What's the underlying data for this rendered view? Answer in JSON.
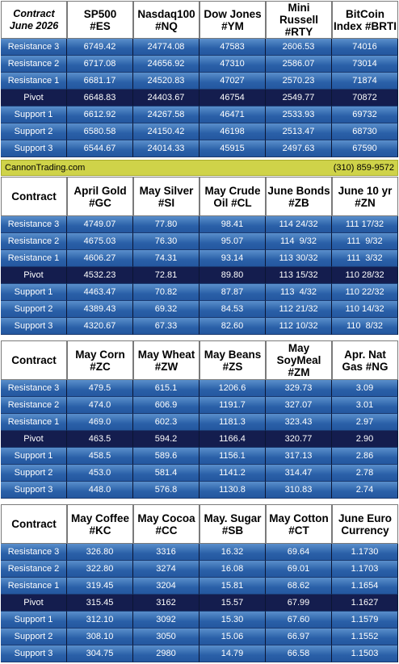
{
  "labels": [
    "Resistance 3",
    "Resistance 2",
    "Resistance 1",
    "Pivot",
    "Support 1",
    "Support 2",
    "Support 3"
  ],
  "banner": {
    "left": "CannonTrading.com",
    "right": "(310) 859-9572"
  },
  "colors": {
    "row": "#2a60a8",
    "pivot": "#141d4e",
    "banner": "#cfd349",
    "header": "#ffffff"
  },
  "tables": [
    {
      "corner": [
        "Contract",
        "June 2026"
      ],
      "headers": [
        [
          "SP500",
          "#ES"
        ],
        [
          "Nasdaq100",
          "#NQ"
        ],
        [
          "Dow Jones",
          "#YM"
        ],
        [
          "Mini Russell",
          "#RTY"
        ],
        [
          "BitCoin",
          "Index #BRTI"
        ]
      ],
      "rows": [
        [
          "6749.42",
          "24774.08",
          "47583",
          "2606.53",
          "74016"
        ],
        [
          "6717.08",
          "24656.92",
          "47310",
          "2586.07",
          "73014"
        ],
        [
          "6681.17",
          "24520.83",
          "47027",
          "2570.23",
          "71874"
        ],
        [
          "6648.83",
          "24403.67",
          "46754",
          "2549.77",
          "70872"
        ],
        [
          "6612.92",
          "24267.58",
          "46471",
          "2533.93",
          "69732"
        ],
        [
          "6580.58",
          "24150.42",
          "46198",
          "2513.47",
          "68730"
        ],
        [
          "6544.67",
          "24014.33",
          "45915",
          "2497.63",
          "67590"
        ]
      ]
    },
    {
      "corner": [
        "Contract"
      ],
      "headers": [
        [
          "April Gold",
          "#GC"
        ],
        [
          "May Silver",
          "#SI"
        ],
        [
          "May Crude",
          "Oil #CL"
        ],
        [
          "June Bonds",
          "#ZB"
        ],
        [
          "June 10 yr",
          "#ZN"
        ]
      ],
      "rows": [
        [
          "4749.07",
          "77.80",
          "98.41",
          "114 24/32",
          "111 17/32"
        ],
        [
          "4675.03",
          "76.30",
          "95.07",
          "114  9/32",
          "111  9/32"
        ],
        [
          "4606.27",
          "74.31",
          "93.14",
          "113 30/32",
          "111  3/32"
        ],
        [
          "4532.23",
          "72.81",
          "89.80",
          "113 15/32",
          "110 28/32"
        ],
        [
          "4463.47",
          "70.82",
          "87.87",
          "113  4/32",
          "110 22/32"
        ],
        [
          "4389.43",
          "69.32",
          "84.53",
          "112 21/32",
          "110 14/32"
        ],
        [
          "4320.67",
          "67.33",
          "82.60",
          "112 10/32",
          "110  8/32"
        ]
      ]
    },
    {
      "corner": [
        "Contract"
      ],
      "headers": [
        [
          "May Corn",
          "#ZC"
        ],
        [
          "May  Wheat",
          "#ZW"
        ],
        [
          "May Beans",
          "#ZS"
        ],
        [
          "May",
          "SoyMeal",
          "#ZM"
        ],
        [
          "Apr. Nat",
          "Gas #NG"
        ]
      ],
      "rows": [
        [
          "479.5",
          "615.1",
          "1206.6",
          "329.73",
          "3.09"
        ],
        [
          "474.0",
          "606.9",
          "1191.7",
          "327.07",
          "3.01"
        ],
        [
          "469.0",
          "602.3",
          "1181.3",
          "323.43",
          "2.97"
        ],
        [
          "463.5",
          "594.2",
          "1166.4",
          "320.77",
          "2.90"
        ],
        [
          "458.5",
          "589.6",
          "1156.1",
          "317.13",
          "2.86"
        ],
        [
          "453.0",
          "581.4",
          "1141.2",
          "314.47",
          "2.78"
        ],
        [
          "448.0",
          "576.8",
          "1130.8",
          "310.83",
          "2.74"
        ]
      ]
    },
    {
      "corner": [
        "Contract"
      ],
      "headers": [
        [
          "May Coffee",
          "#KC"
        ],
        [
          "May Cocoa",
          "#CC"
        ],
        [
          "May. Sugar",
          "#SB"
        ],
        [
          "May Cotton",
          "#CT"
        ],
        [
          "June Euro",
          "Currency"
        ]
      ],
      "rows": [
        [
          "326.80",
          "3316",
          "16.32",
          "69.64",
          "1.1730"
        ],
        [
          "322.80",
          "3274",
          "16.08",
          "69.01",
          "1.1703"
        ],
        [
          "319.45",
          "3204",
          "15.81",
          "68.62",
          "1.1654"
        ],
        [
          "315.45",
          "3162",
          "15.57",
          "67.99",
          "1.1627"
        ],
        [
          "312.10",
          "3092",
          "15.30",
          "67.60",
          "1.1579"
        ],
        [
          "308.10",
          "3050",
          "15.06",
          "66.97",
          "1.1552"
        ],
        [
          "304.75",
          "2980",
          "14.79",
          "66.58",
          "1.1503"
        ]
      ]
    }
  ]
}
